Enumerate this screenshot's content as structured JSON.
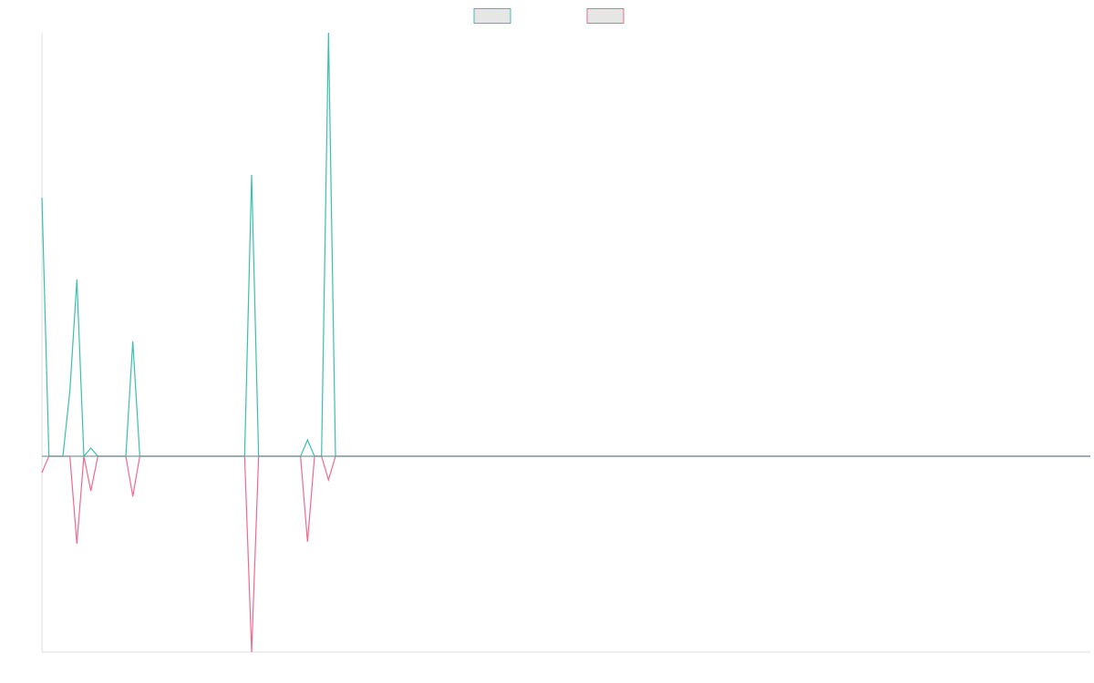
{
  "chart_data": {
    "type": "line",
    "title": "",
    "xlabel": "",
    "ylabel": "",
    "grid": false,
    "legend_position": "top-center",
    "ylim": [
      -215,
      465
    ],
    "x": [
      0,
      1,
      2,
      3,
      4,
      5,
      6,
      7,
      8,
      9,
      10,
      11,
      12,
      13,
      14,
      15,
      16,
      17,
      18,
      19,
      20,
      21,
      22,
      23,
      24,
      25,
      26,
      27,
      28,
      29,
      30,
      31,
      32,
      33,
      34,
      35,
      36,
      37,
      38,
      39,
      40,
      41,
      42,
      43,
      44,
      45,
      46,
      47,
      48,
      49,
      50,
      51,
      52,
      53,
      54,
      55,
      56,
      57,
      58,
      59,
      60,
      61,
      62,
      63,
      64,
      65,
      66,
      67,
      68,
      69,
      70,
      71,
      72,
      73,
      74,
      75,
      76,
      77,
      78,
      79,
      80,
      81,
      82,
      83,
      84,
      85,
      86,
      87,
      88,
      89,
      90,
      91,
      92,
      93,
      94,
      95,
      96,
      97,
      98,
      99,
      100,
      101,
      102,
      103,
      104,
      105,
      106,
      107,
      108,
      109,
      110,
      111,
      112,
      113,
      114,
      115,
      116,
      117,
      118,
      119,
      120,
      121,
      122,
      123,
      124,
      125,
      126,
      127,
      128,
      129,
      130,
      131,
      132,
      133,
      134,
      135,
      136,
      137,
      138,
      139,
      140,
      141,
      142,
      143,
      144,
      145,
      146,
      147,
      148,
      149,
      150
    ],
    "series": [
      {
        "color": "#3cbfae",
        "values": [
          284,
          0,
          0,
          0,
          72,
          194,
          0,
          9,
          0,
          0,
          0,
          0,
          0,
          126,
          0,
          0,
          0,
          0,
          0,
          0,
          0,
          0,
          0,
          0,
          0,
          0,
          0,
          0,
          0,
          0,
          309,
          0,
          0,
          0,
          0,
          0,
          0,
          0,
          18,
          0,
          0,
          465,
          0,
          0,
          0,
          0,
          0,
          0,
          0,
          0,
          0,
          0,
          0,
          0,
          0,
          0,
          0,
          0,
          0,
          0,
          0,
          0,
          0,
          0,
          0,
          0,
          0,
          0,
          0,
          0,
          0,
          0,
          0,
          0,
          0,
          0,
          0,
          0,
          0,
          0,
          0,
          0,
          0,
          0,
          0,
          0,
          0,
          0,
          0,
          0,
          0,
          0,
          0,
          0,
          0,
          0,
          0,
          0,
          0,
          0,
          0,
          0,
          0,
          0,
          0,
          0,
          0,
          0,
          0,
          0,
          0,
          0,
          0,
          0,
          0,
          0,
          0,
          0,
          0,
          0,
          0,
          0,
          0,
          0,
          0,
          0,
          0,
          0,
          0,
          0,
          0,
          0,
          0,
          0,
          0,
          0,
          0,
          0,
          0,
          0,
          0,
          0,
          0,
          0,
          0,
          0,
          0,
          0,
          0,
          0,
          0
        ]
      },
      {
        "color": "#f06a8f",
        "values": [
          -18,
          0,
          0,
          0,
          0,
          -96,
          0,
          -38,
          0,
          0,
          0,
          0,
          0,
          -44,
          0,
          0,
          0,
          0,
          0,
          0,
          0,
          0,
          0,
          0,
          0,
          0,
          0,
          0,
          0,
          0,
          -215,
          0,
          0,
          0,
          0,
          0,
          0,
          0,
          -94,
          0,
          0,
          -26,
          0,
          0,
          0,
          0,
          0,
          0,
          0,
          0,
          0,
          0,
          0,
          0,
          0,
          0,
          0,
          0,
          0,
          0,
          0,
          0,
          0,
          0,
          0,
          0,
          0,
          0,
          0,
          0,
          0,
          0,
          0,
          0,
          0,
          0,
          0,
          0,
          0,
          0,
          0,
          0,
          0,
          0,
          0,
          0,
          0,
          0,
          0,
          0,
          0,
          0,
          0,
          0,
          0,
          0,
          0,
          0,
          0,
          0,
          0,
          0,
          0,
          0,
          0,
          0,
          0,
          0,
          0,
          0,
          0,
          0,
          0,
          0,
          0,
          0,
          0,
          0,
          0,
          0,
          0,
          0,
          0,
          0,
          0,
          0,
          0,
          0,
          0,
          0,
          0,
          0,
          0,
          0,
          0,
          0,
          0,
          0,
          0,
          0,
          0,
          0,
          0,
          0,
          0,
          0,
          0,
          0,
          0,
          0,
          0
        ]
      }
    ]
  },
  "colors": {
    "axis": "#dddddd",
    "zero_line": "#7a9a9a",
    "legend_fill": "#e6e6e6"
  }
}
